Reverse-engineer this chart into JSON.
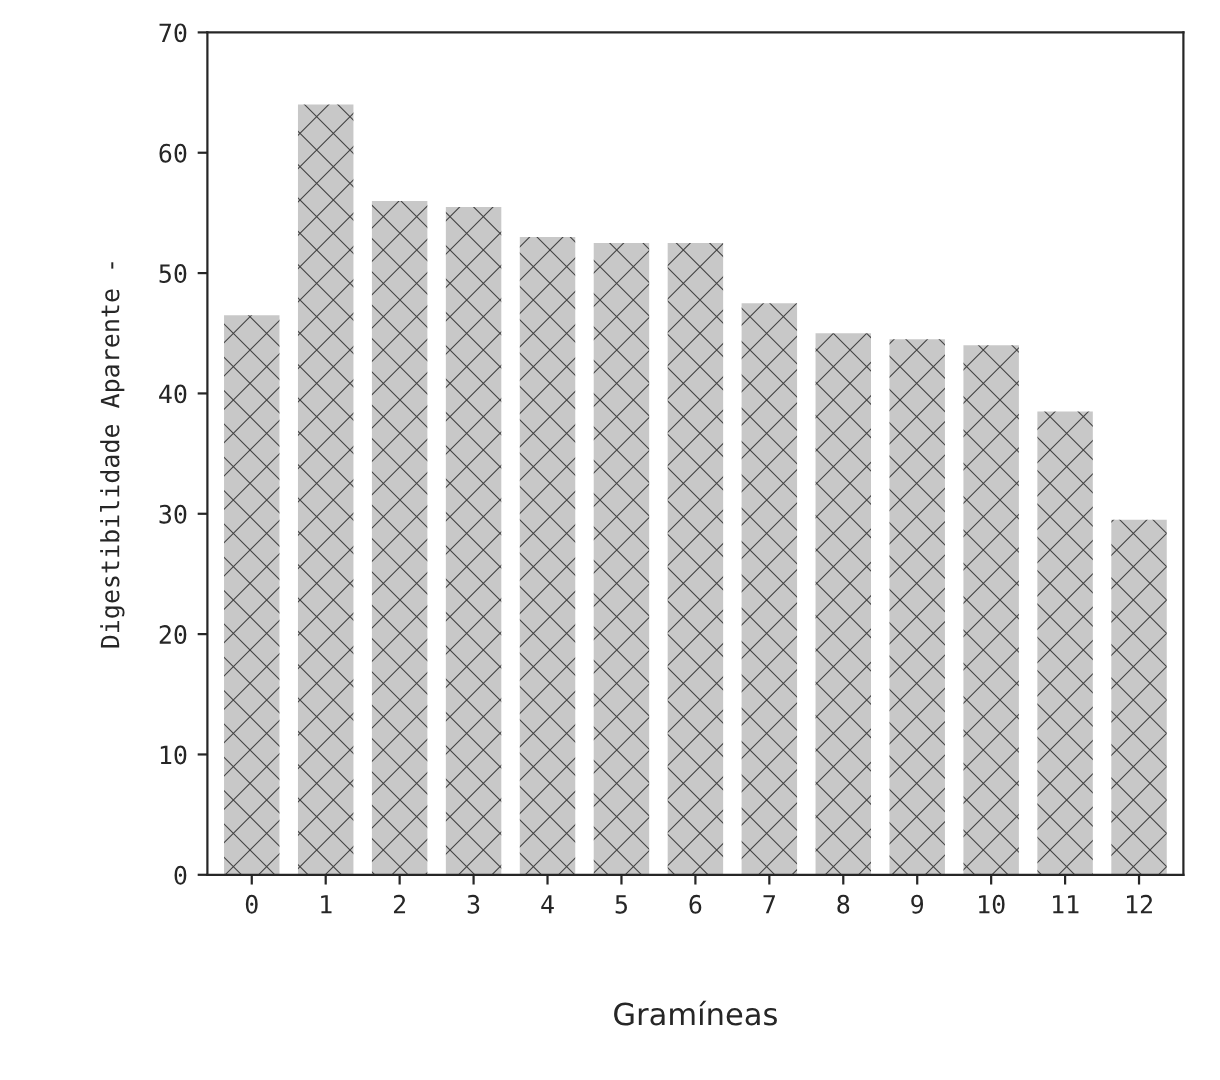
{
  "chart_data": {
    "type": "bar",
    "xlabel": "Gramíneas",
    "ylabel": "Digestibilidade Aparente -",
    "categories": [
      "0",
      "1",
      "2",
      "3",
      "4",
      "5",
      "6",
      "7",
      "8",
      "9",
      "10",
      "11",
      "12"
    ],
    "values": [
      46.5,
      64,
      56,
      55.5,
      53,
      52.5,
      52.5,
      47.5,
      45,
      44.5,
      44,
      38.5,
      29.5
    ],
    "color": "#c8c8c8",
    "ylim": [
      0,
      70
    ],
    "yticks": [
      0,
      10,
      20,
      30,
      40,
      50,
      60,
      70
    ],
    "grid": false
  }
}
